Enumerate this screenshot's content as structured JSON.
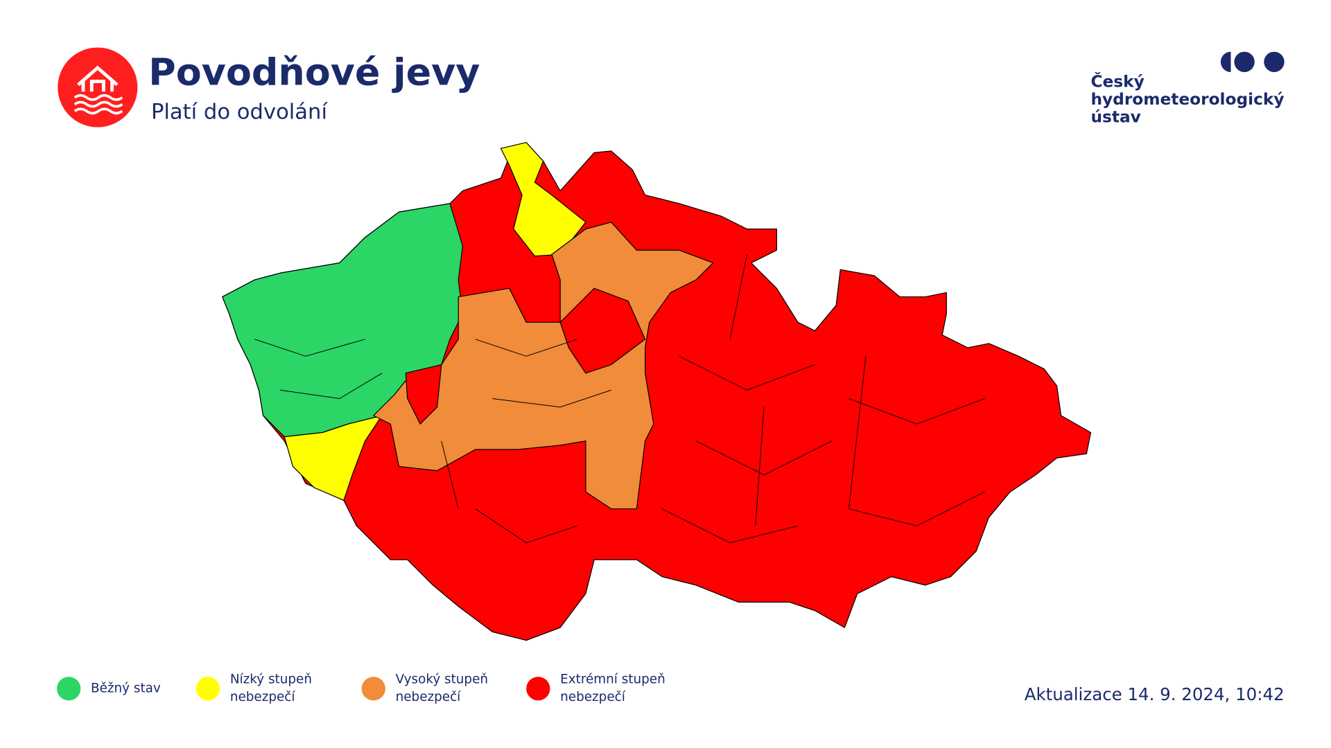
{
  "header": {
    "title": "Povodňové jevy",
    "subtitle": "Platí do odvolání"
  },
  "logo": {
    "lines": [
      "Český",
      "hydrometeorologický",
      "ústav"
    ]
  },
  "legend": [
    {
      "lines": [
        "Běžný stav"
      ],
      "color": "#2bd666"
    },
    {
      "lines": [
        "Nízký stupeň",
        "nebezpečí"
      ],
      "color": "#ffff00"
    },
    {
      "lines": [
        "Vysoký stupeň",
        "nebezpečí"
      ],
      "color": "#f08c3a"
    },
    {
      "lines": [
        "Extrémní stupeň",
        "nebezpečí"
      ],
      "color": "#ff0000"
    }
  ],
  "updated": "Aktualizace 14. 9. 2024, 10:42"
}
